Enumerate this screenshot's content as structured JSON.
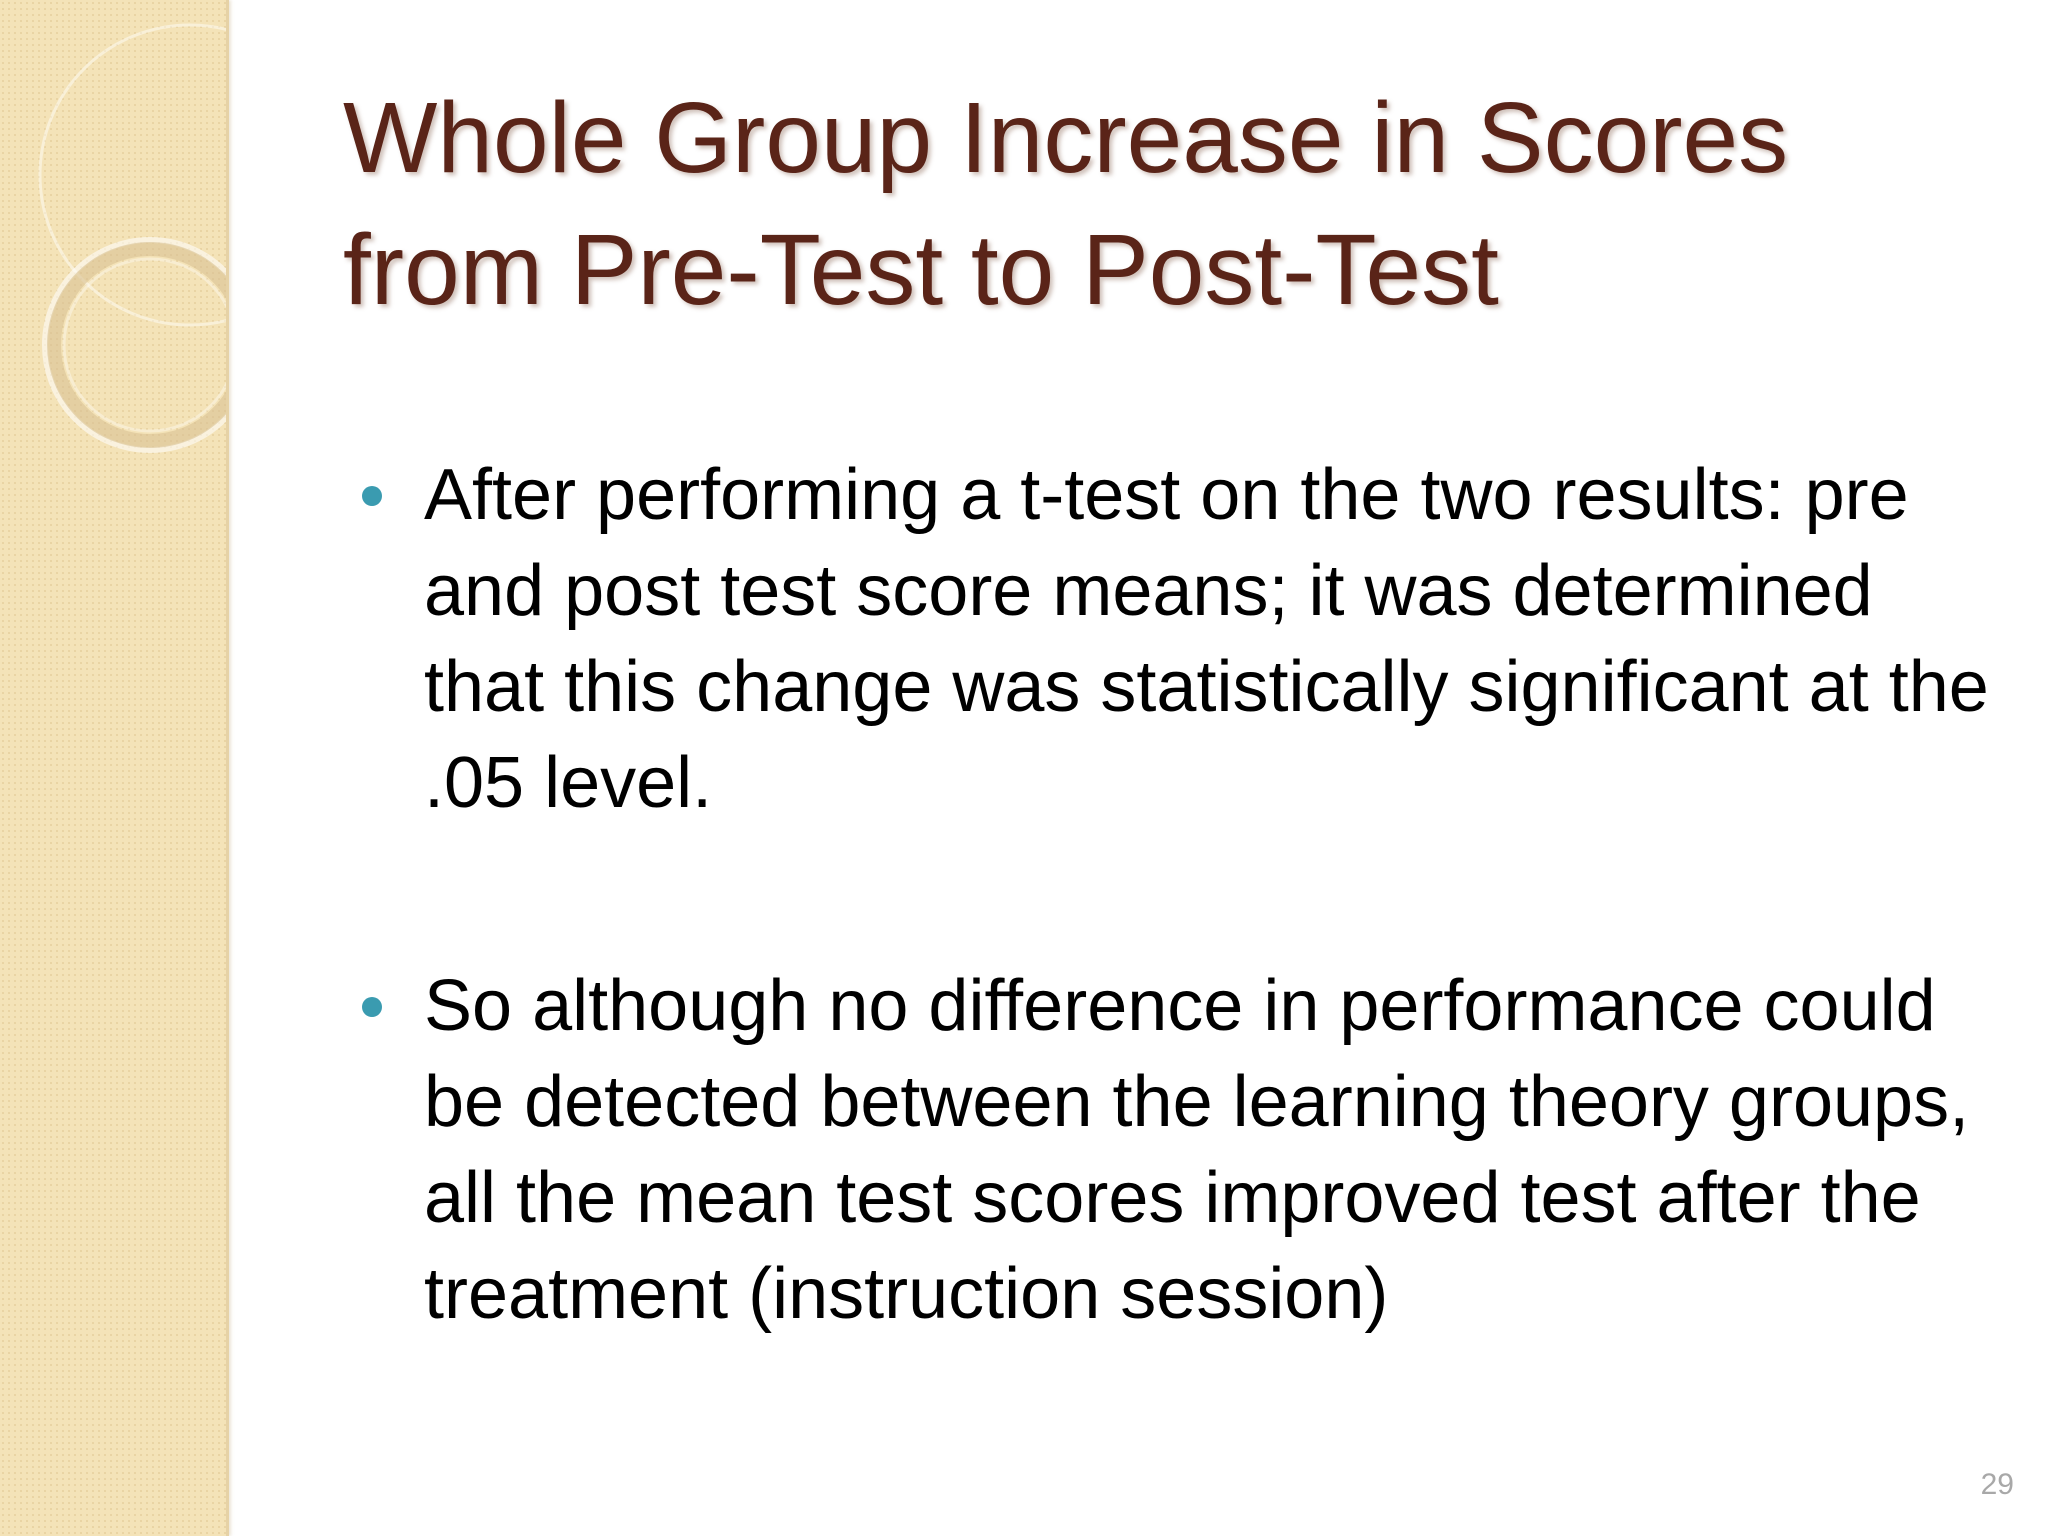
{
  "slide": {
    "title": "Whole Group Increase in Scores from Pre-Test to Post-Test",
    "bullets": [
      {
        "text": "After performing a t-test on the two results: pre and post test score means; it was determined that this change was statistically significant at the .05 level."
      },
      {
        "text": "So although no difference in performance could be detected between the learning theory groups, all the mean test scores improved test after the treatment (instruction session)"
      }
    ],
    "page_number": "29"
  },
  "colors": {
    "title": "#5a2418",
    "bullet": "#3a9bb0",
    "sidebar": "#f4e3b8",
    "page_number": "#a8a8a8"
  }
}
